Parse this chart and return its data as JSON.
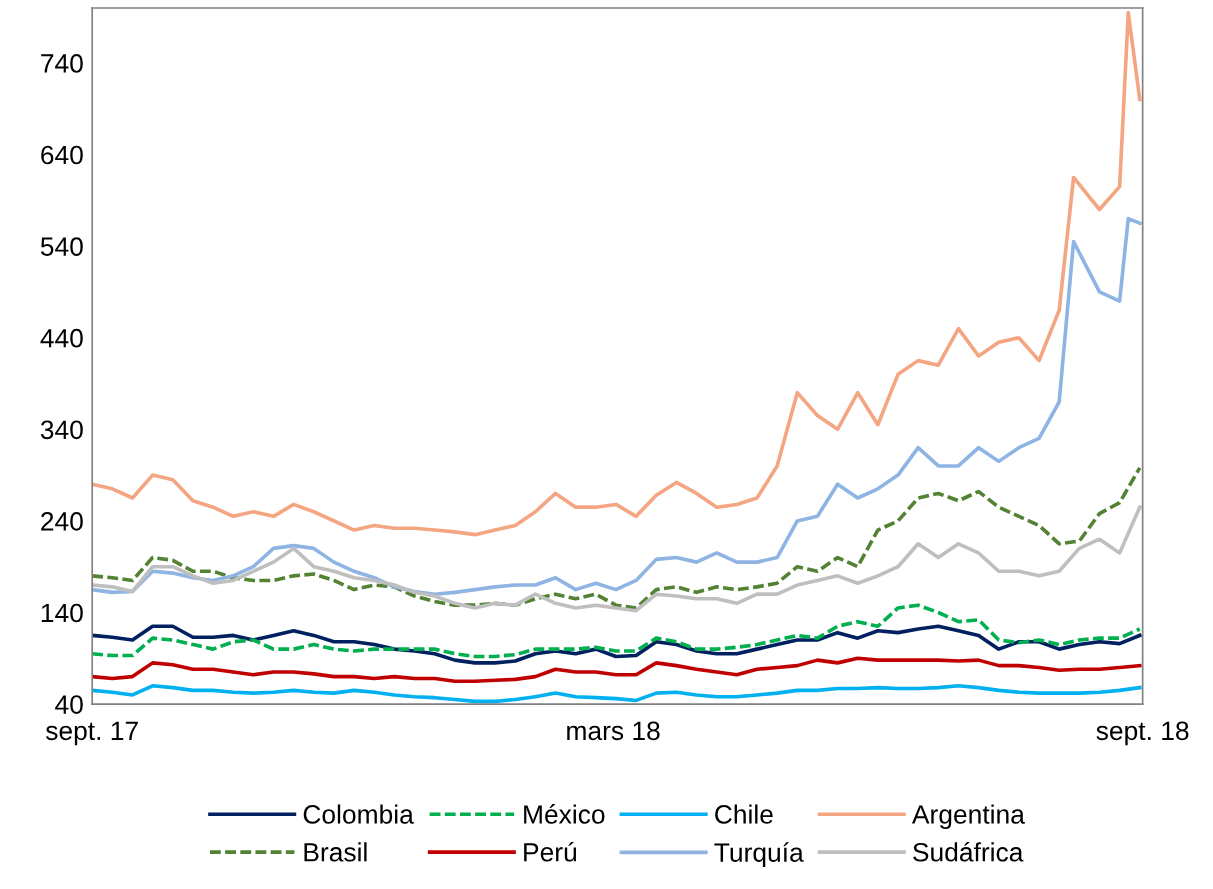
{
  "chart_data": {
    "type": "line",
    "x": [
      "2017-09-01",
      "2017-09-08",
      "2017-09-15",
      "2017-09-22",
      "2017-09-29",
      "2017-10-06",
      "2017-10-13",
      "2017-10-20",
      "2017-10-27",
      "2017-11-03",
      "2017-11-10",
      "2017-11-17",
      "2017-11-24",
      "2017-12-01",
      "2017-12-08",
      "2017-12-15",
      "2017-12-22",
      "2017-12-29",
      "2018-01-05",
      "2018-01-12",
      "2018-01-19",
      "2018-01-26",
      "2018-02-02",
      "2018-02-09",
      "2018-02-16",
      "2018-02-23",
      "2018-03-02",
      "2018-03-09",
      "2018-03-16",
      "2018-03-23",
      "2018-03-30",
      "2018-04-06",
      "2018-04-13",
      "2018-04-20",
      "2018-04-27",
      "2018-05-04",
      "2018-05-11",
      "2018-05-18",
      "2018-05-25",
      "2018-06-01",
      "2018-06-08",
      "2018-06-15",
      "2018-06-22",
      "2018-06-29",
      "2018-07-06",
      "2018-07-13",
      "2018-07-20",
      "2018-07-27",
      "2018-08-03",
      "2018-08-10",
      "2018-08-17",
      "2018-08-24",
      "2018-08-31"
    ],
    "series": [
      {
        "name": "Colombia",
        "color": "#002060",
        "line_style": "solid",
        "values": [
          115,
          113,
          110,
          125,
          125,
          113,
          113,
          115,
          110,
          115,
          120,
          115,
          108,
          108,
          105,
          100,
          98,
          95,
          88,
          85,
          85,
          87,
          95,
          98,
          95,
          100,
          92,
          93,
          108,
          105,
          98,
          95,
          95,
          100,
          105,
          110,
          110,
          118,
          112,
          120,
          118,
          122,
          125,
          120,
          115,
          100,
          108,
          108,
          100,
          105,
          108,
          106,
          115
        ]
      },
      {
        "name": "Brasil",
        "color": "#548235",
        "line_style": "dashed",
        "values": [
          180,
          178,
          175,
          200,
          197,
          185,
          185,
          178,
          175,
          175,
          180,
          182,
          175,
          165,
          170,
          168,
          158,
          152,
          148,
          148,
          150,
          148,
          155,
          160,
          155,
          160,
          148,
          145,
          165,
          168,
          162,
          168,
          165,
          168,
          172,
          190,
          185,
          200,
          190,
          230,
          240,
          265,
          270,
          262,
          272,
          255,
          245,
          235,
          215,
          218,
          248,
          260,
          298
        ]
      },
      {
        "name": "México",
        "color": "#00b050",
        "line_style": "dashed",
        "values": [
          95,
          93,
          93,
          112,
          110,
          105,
          100,
          108,
          110,
          100,
          100,
          105,
          100,
          98,
          100,
          100,
          100,
          100,
          95,
          92,
          92,
          94,
          100,
          100,
          100,
          102,
          98,
          98,
          112,
          108,
          100,
          100,
          102,
          105,
          110,
          115,
          112,
          125,
          130,
          125,
          145,
          148,
          140,
          130,
          132,
          110,
          107,
          110,
          105,
          110,
          112,
          112,
          122
        ]
      },
      {
        "name": "Perú",
        "color": "#c00000",
        "line_style": "solid",
        "values": [
          70,
          68,
          70,
          85,
          83,
          78,
          78,
          75,
          72,
          75,
          75,
          73,
          70,
          70,
          68,
          70,
          68,
          68,
          65,
          65,
          66,
          67,
          70,
          78,
          75,
          75,
          72,
          72,
          85,
          82,
          78,
          75,
          72,
          78,
          80,
          82,
          88,
          85,
          90,
          88,
          88,
          88,
          88,
          87,
          88,
          82,
          82,
          80,
          77,
          78,
          78,
          80,
          82
        ]
      },
      {
        "name": "Chile",
        "color": "#00b0f0",
        "line_style": "solid",
        "values": [
          55,
          53,
          50,
          60,
          58,
          55,
          55,
          53,
          52,
          53,
          55,
          53,
          52,
          55,
          53,
          50,
          48,
          47,
          45,
          43,
          43,
          45,
          48,
          52,
          48,
          47,
          46,
          44,
          52,
          53,
          50,
          48,
          48,
          50,
          52,
          55,
          55,
          57,
          57,
          58,
          57,
          57,
          58,
          60,
          58,
          55,
          53,
          52,
          52,
          52,
          53,
          55,
          58
        ]
      },
      {
        "name": "Turquía",
        "color": "#8eb4e3",
        "line_style": "solid",
        "x": [
          "2017-09-01",
          "2017-09-08",
          "2017-09-15",
          "2017-09-22",
          "2017-09-29",
          "2017-10-06",
          "2017-10-13",
          "2017-10-20",
          "2017-10-27",
          "2017-11-03",
          "2017-11-10",
          "2017-11-17",
          "2017-11-24",
          "2017-12-01",
          "2017-12-08",
          "2017-12-15",
          "2017-12-22",
          "2017-12-29",
          "2018-01-05",
          "2018-01-12",
          "2018-01-19",
          "2018-01-26",
          "2018-02-02",
          "2018-02-09",
          "2018-02-16",
          "2018-02-23",
          "2018-03-02",
          "2018-03-09",
          "2018-03-16",
          "2018-03-23",
          "2018-03-30",
          "2018-04-06",
          "2018-04-13",
          "2018-04-20",
          "2018-04-27",
          "2018-05-04",
          "2018-05-11",
          "2018-05-18",
          "2018-05-25",
          "2018-06-01",
          "2018-06-08",
          "2018-06-15",
          "2018-06-22",
          "2018-06-29",
          "2018-07-06",
          "2018-07-13",
          "2018-07-20",
          "2018-07-27",
          "2018-08-03",
          "2018-08-08",
          "2018-08-17",
          "2018-08-24",
          "2018-08-27",
          "2018-08-31"
        ],
        "values": [
          165,
          162,
          163,
          185,
          183,
          178,
          175,
          180,
          190,
          210,
          213,
          210,
          195,
          185,
          178,
          168,
          163,
          160,
          162,
          165,
          168,
          170,
          170,
          178,
          165,
          172,
          165,
          175,
          198,
          200,
          195,
          205,
          195,
          195,
          200,
          240,
          245,
          280,
          265,
          275,
          290,
          320,
          300,
          300,
          320,
          305,
          320,
          330,
          370,
          545,
          490,
          480,
          570,
          565
        ]
      },
      {
        "name": "Argentina",
        "color": "#f4a582",
        "line_style": "solid",
        "x": [
          "2017-09-01",
          "2017-09-08",
          "2017-09-15",
          "2017-09-22",
          "2017-09-29",
          "2017-10-06",
          "2017-10-13",
          "2017-10-20",
          "2017-10-27",
          "2017-11-03",
          "2017-11-10",
          "2017-11-17",
          "2017-11-24",
          "2017-12-01",
          "2017-12-08",
          "2017-12-15",
          "2017-12-22",
          "2017-12-29",
          "2018-01-05",
          "2018-01-12",
          "2018-01-19",
          "2018-01-26",
          "2018-02-02",
          "2018-02-09",
          "2018-02-16",
          "2018-02-23",
          "2018-03-02",
          "2018-03-09",
          "2018-03-16",
          "2018-03-23",
          "2018-03-30",
          "2018-04-06",
          "2018-04-13",
          "2018-04-20",
          "2018-04-27",
          "2018-05-04",
          "2018-05-11",
          "2018-05-18",
          "2018-05-25",
          "2018-06-01",
          "2018-06-08",
          "2018-06-15",
          "2018-06-22",
          "2018-06-29",
          "2018-07-06",
          "2018-07-13",
          "2018-07-20",
          "2018-07-27",
          "2018-08-03",
          "2018-08-08",
          "2018-08-17",
          "2018-08-24",
          "2018-08-27",
          "2018-08-31"
        ],
        "values": [
          280,
          275,
          265,
          290,
          285,
          262,
          255,
          245,
          250,
          245,
          258,
          250,
          240,
          230,
          235,
          232,
          232,
          230,
          228,
          225,
          230,
          235,
          250,
          270,
          255,
          255,
          258,
          245,
          268,
          282,
          270,
          255,
          258,
          265,
          300,
          380,
          355,
          340,
          380,
          345,
          400,
          415,
          410,
          450,
          420,
          435,
          440,
          415,
          470,
          615,
          580,
          605,
          795,
          700
        ]
      },
      {
        "name": "Sudáfrica",
        "color": "#bfbfbf",
        "line_style": "solid",
        "values": [
          170,
          168,
          163,
          190,
          190,
          180,
          172,
          175,
          185,
          195,
          210,
          190,
          185,
          178,
          175,
          170,
          162,
          158,
          150,
          145,
          150,
          148,
          160,
          150,
          145,
          148,
          145,
          142,
          160,
          158,
          155,
          155,
          150,
          160,
          160,
          170,
          175,
          180,
          172,
          180,
          190,
          215,
          200,
          215,
          205,
          185,
          185,
          180,
          185,
          210,
          220,
          205,
          255
        ]
      }
    ],
    "xlim": [
      "2017-09-01",
      "2018-09-01"
    ],
    "xticks": [
      {
        "value": "2017-09-01",
        "label": "sept. 17"
      },
      {
        "value": "2018-03-01",
        "label": "mars 18"
      },
      {
        "value": "2018-09-01",
        "label": "sept. 18"
      }
    ],
    "ylim": [
      40,
      800
    ],
    "yticks": [
      40,
      140,
      240,
      340,
      440,
      540,
      640,
      740
    ],
    "legend": "bottom"
  }
}
